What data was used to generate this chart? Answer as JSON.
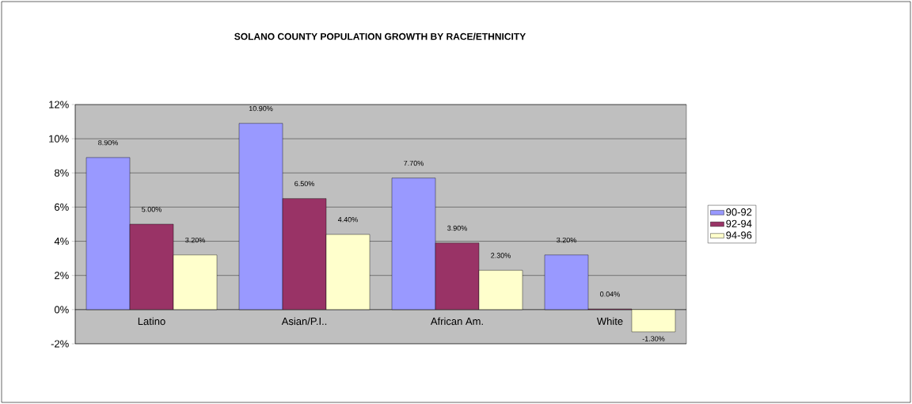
{
  "chart_data": {
    "type": "bar",
    "title": "SOLANO COUNTY POPULATION GROWTH BY RACE/ETHNICITY",
    "categories": [
      "Latino",
      "Asian/P.I..",
      "African Am.",
      "White"
    ],
    "series": [
      {
        "name": "90-92",
        "color": "#9999ff",
        "values": [
          8.9,
          10.9,
          7.7,
          3.2
        ],
        "value_labels": [
          "8.90%",
          "10.90%",
          "7.70%",
          "3.20%"
        ]
      },
      {
        "name": "92-94",
        "color": "#993366",
        "values": [
          5.0,
          6.5,
          3.9,
          0.04
        ],
        "value_labels": [
          "5.00%",
          "6.50%",
          "3.90%",
          "0.04%"
        ]
      },
      {
        "name": "94-96",
        "color": "#ffffcc",
        "values": [
          3.2,
          4.4,
          2.3,
          -1.3
        ],
        "value_labels": [
          "3.20%",
          "4.40%",
          "2.30%",
          "-1.30%"
        ]
      }
    ],
    "ylim": [
      -2,
      12
    ],
    "yticks": [
      {
        "value": -2,
        "label": "-2%"
      },
      {
        "value": 0,
        "label": "0%"
      },
      {
        "value": 2,
        "label": "2%"
      },
      {
        "value": 4,
        "label": "4%"
      },
      {
        "value": 6,
        "label": "6%"
      },
      {
        "value": 8,
        "label": "8%"
      },
      {
        "value": 10,
        "label": "10%"
      },
      {
        "value": 12,
        "label": "12%"
      }
    ],
    "grid": "y",
    "legend": "right"
  }
}
